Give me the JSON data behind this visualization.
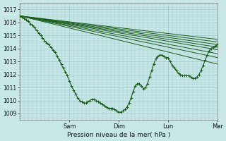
{
  "bg_color": "#c8e8e8",
  "grid_color": "#9ec8c8",
  "line_color": "#1a5c1a",
  "marker_color": "#1a5c1a",
  "xlabel_text": "Pression niveau de la mer( hPa )",
  "ylim": [
    1008.5,
    1017.5
  ],
  "yticks": [
    1009,
    1010,
    1011,
    1012,
    1013,
    1014,
    1015,
    1016,
    1017
  ],
  "xlim": [
    0,
    96
  ],
  "xtick_positions": [
    24,
    48,
    72,
    96
  ],
  "xtick_labels": [
    "Sam",
    "Dim",
    "Lun",
    "Mar"
  ],
  "observed_x": [
    0,
    1,
    2,
    3,
    4,
    5,
    6,
    7,
    8,
    9,
    10,
    11,
    12,
    13,
    14,
    15,
    16,
    17,
    18,
    19,
    20,
    21,
    22,
    23,
    24,
    25,
    26,
    27,
    28,
    29,
    30,
    31,
    32,
    33,
    34,
    35,
    36,
    37,
    38,
    39,
    40,
    41,
    42,
    43,
    44,
    45,
    46,
    47,
    48,
    49,
    50,
    51,
    52,
    53,
    54,
    55,
    56,
    57,
    58,
    59,
    60,
    61,
    62,
    63,
    64,
    65,
    66,
    67,
    68,
    69,
    70,
    71,
    72,
    73,
    74,
    75,
    76,
    77,
    78,
    79,
    80,
    81,
    82,
    83,
    84,
    85,
    86,
    87,
    88,
    89,
    90,
    91,
    92,
    93,
    94,
    95,
    96
  ],
  "observed_y": [
    1016.5,
    1016.4,
    1016.3,
    1016.2,
    1016.1,
    1015.9,
    1015.8,
    1015.6,
    1015.4,
    1015.2,
    1015.0,
    1014.8,
    1014.6,
    1014.4,
    1014.3,
    1014.1,
    1013.9,
    1013.7,
    1013.4,
    1013.1,
    1012.8,
    1012.5,
    1012.2,
    1011.9,
    1011.5,
    1011.1,
    1010.8,
    1010.5,
    1010.2,
    1010.0,
    1009.9,
    1009.8,
    1009.8,
    1009.9,
    1010.0,
    1010.1,
    1010.1,
    1010.0,
    1009.9,
    1009.8,
    1009.7,
    1009.6,
    1009.5,
    1009.4,
    1009.4,
    1009.4,
    1009.3,
    1009.2,
    1009.1,
    1009.1,
    1009.2,
    1009.3,
    1009.5,
    1009.8,
    1010.2,
    1010.7,
    1011.1,
    1011.3,
    1011.3,
    1011.1,
    1010.9,
    1011.0,
    1011.3,
    1011.8,
    1012.3,
    1012.8,
    1013.2,
    1013.4,
    1013.5,
    1013.5,
    1013.4,
    1013.3,
    1013.3,
    1013.0,
    1012.7,
    1012.5,
    1012.3,
    1012.1,
    1012.0,
    1011.9,
    1011.9,
    1011.9,
    1011.9,
    1011.8,
    1011.7,
    1011.7,
    1011.8,
    1012.0,
    1012.3,
    1012.7,
    1013.1,
    1013.5,
    1013.8,
    1014.0,
    1014.1,
    1014.2,
    1014.3
  ],
  "forecast_lines": [
    {
      "x0": 0,
      "y0": 1016.5,
      "x1": 96,
      "y1": 1014.7
    },
    {
      "x0": 0,
      "y0": 1016.5,
      "x1": 96,
      "y1": 1014.5
    },
    {
      "x0": 0,
      "y0": 1016.5,
      "x1": 96,
      "y1": 1014.3
    },
    {
      "x0": 0,
      "y0": 1016.5,
      "x1": 96,
      "y1": 1014.1
    },
    {
      "x0": 0,
      "y0": 1016.5,
      "x1": 96,
      "y1": 1013.9
    },
    {
      "x0": 0,
      "y0": 1016.5,
      "x1": 96,
      "y1": 1013.6
    },
    {
      "x0": 0,
      "y0": 1016.5,
      "x1": 96,
      "y1": 1013.3
    },
    {
      "x0": 0,
      "y0": 1016.5,
      "x1": 96,
      "y1": 1012.8
    }
  ]
}
